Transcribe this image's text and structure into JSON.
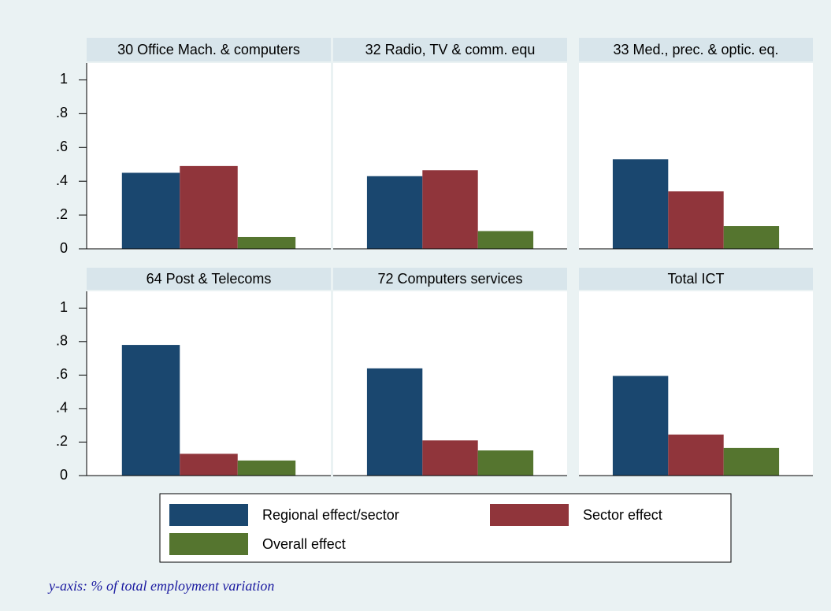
{
  "chart_data": [
    {
      "type": "bar",
      "title": "30 Office Mach. & computers",
      "values": [
        0.45,
        0.49,
        0.07
      ],
      "ylim": [
        0,
        1.1
      ],
      "yticks": [
        0,
        {
          "value": 0.2,
          "label": ".2"
        },
        {
          "value": 0.4,
          "label": ".4"
        },
        {
          "value": 0.6,
          "label": ".6"
        },
        {
          "value": 0.8,
          "label": ".8"
        },
        1
      ]
    },
    {
      "type": "bar",
      "title": "32 Radio, TV & comm. equ",
      "values": [
        0.43,
        0.465,
        0.105
      ],
      "ylim": [
        0,
        1.1
      ]
    },
    {
      "type": "bar",
      "title": "33 Med., prec. & optic. eq.",
      "values": [
        0.53,
        0.34,
        0.135
      ],
      "ylim": [
        0,
        1.1
      ]
    },
    {
      "type": "bar",
      "title": "64 Post & Telecoms",
      "values": [
        0.78,
        0.13,
        0.09
      ],
      "ylim": [
        0,
        1.1
      ],
      "yticks": [
        0,
        {
          "value": 0.2,
          "label": ".2"
        },
        {
          "value": 0.4,
          "label": ".4"
        },
        {
          "value": 0.6,
          "label": ".6"
        },
        {
          "value": 0.8,
          "label": ".8"
        },
        1
      ]
    },
    {
      "type": "bar",
      "title": "72 Computers services",
      "values": [
        0.64,
        0.21,
        0.15
      ],
      "ylim": [
        0,
        1.1
      ]
    },
    {
      "type": "bar",
      "title": "Total  ICT",
      "values": [
        0.595,
        0.245,
        0.165
      ],
      "ylim": [
        0,
        1.1
      ]
    }
  ],
  "legend": {
    "series": [
      {
        "name": "Regional effect/sector",
        "color": "#1a476f"
      },
      {
        "name": "Sector effect",
        "color": "#90353b"
      },
      {
        "name": "Overall effect",
        "color": "#55752f"
      }
    ]
  },
  "note": "y-axis: % of total employment variation"
}
